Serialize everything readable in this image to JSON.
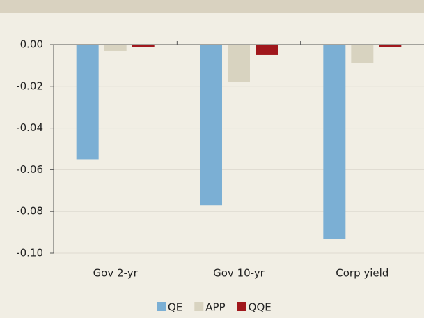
{
  "chart_data": {
    "type": "bar",
    "categories": [
      "Gov 2-yr",
      "Gov 10-yr",
      "Corp yield"
    ],
    "series": [
      {
        "name": "QE",
        "color": "#7bafd4",
        "values": [
          -0.055,
          -0.077,
          -0.093
        ]
      },
      {
        "name": "APP",
        "color": "#d8d3c0",
        "values": [
          -0.003,
          -0.018,
          -0.009
        ]
      },
      {
        "name": "QQE",
        "color": "#a0171c",
        "values": [
          -0.001,
          -0.005,
          -0.001
        ]
      }
    ],
    "ylim": [
      -0.1,
      0
    ],
    "yticks": [
      {
        "value": 0,
        "label": "0.00"
      },
      {
        "value": -0.02,
        "label": "-0.02"
      },
      {
        "value": -0.04,
        "label": "-0.04"
      },
      {
        "value": -0.06,
        "label": "-0.06"
      },
      {
        "value": -0.08,
        "label": "-0.08"
      },
      {
        "value": -0.1,
        "label": "-0.10"
      }
    ],
    "grid": true,
    "legend": "bottom"
  }
}
